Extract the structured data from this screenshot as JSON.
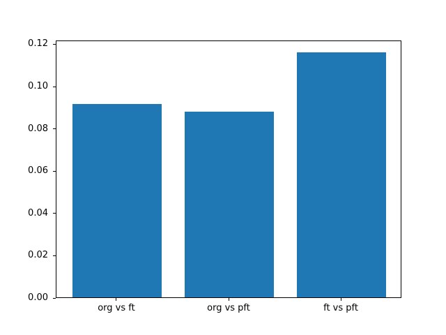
{
  "chart_data": {
    "type": "bar",
    "categories": [
      "org vs ft",
      "org vs pft",
      "ft vs pft"
    ],
    "values": [
      0.0915,
      0.0878,
      0.116
    ],
    "title": "",
    "xlabel": "",
    "ylabel": "",
    "ylim": [
      0,
      0.1218
    ],
    "yticks": [
      0.0,
      0.02,
      0.04,
      0.06,
      0.08,
      0.1,
      0.12
    ],
    "ytick_labels": [
      "0.00",
      "0.02",
      "0.04",
      "0.06",
      "0.08",
      "0.10",
      "0.12"
    ],
    "bar_color": "#1f77b4",
    "spine_color": "#000000",
    "background_color": "#ffffff",
    "bar_width_fraction": 0.8,
    "grid": false,
    "legend": "none"
  }
}
